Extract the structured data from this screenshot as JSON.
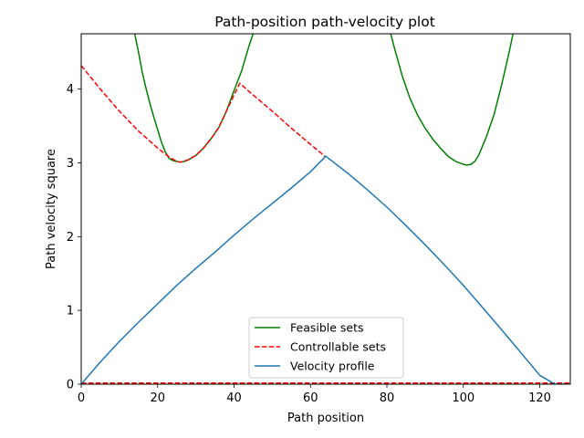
{
  "chart_data": {
    "type": "line",
    "title": "Path-position path-velocity plot",
    "xlabel": "Path position",
    "ylabel": "Path velocity square",
    "xlim": [
      0,
      128
    ],
    "ylim": [
      0,
      4.75
    ],
    "xticks": [
      "0",
      "20",
      "40",
      "60",
      "80",
      "100",
      "120"
    ],
    "yticks": [
      "0",
      "1",
      "2",
      "3",
      "4"
    ],
    "grid": false,
    "legend": "lower-center",
    "series": [
      {
        "name": "Feasible sets",
        "color": "#008000",
        "style": "solid",
        "segments": [
          [
            [
              14,
              4.75
            ],
            [
              15,
              4.5
            ],
            [
              16,
              4.22
            ],
            [
              17,
              4.0
            ],
            [
              18,
              3.8
            ],
            [
              19,
              3.62
            ],
            [
              20,
              3.45
            ],
            [
              21,
              3.28
            ],
            [
              22,
              3.15
            ],
            [
              23,
              3.06
            ],
            [
              24,
              3.03
            ],
            [
              25,
              3.02
            ],
            [
              26,
              3.01
            ],
            [
              27,
              3.02
            ],
            [
              28,
              3.04
            ],
            [
              30,
              3.1
            ],
            [
              32,
              3.2
            ],
            [
              34,
              3.33
            ],
            [
              36,
              3.48
            ],
            [
              38,
              3.7
            ],
            [
              40,
              3.98
            ],
            [
              42,
              4.25
            ],
            [
              43,
              4.43
            ],
            [
              44,
              4.6
            ],
            [
              45,
              4.75
            ]
          ],
          [
            [
              81,
              4.75
            ],
            [
              82,
              4.55
            ],
            [
              84,
              4.18
            ],
            [
              86,
              3.88
            ],
            [
              88,
              3.65
            ],
            [
              90,
              3.47
            ],
            [
              92,
              3.32
            ],
            [
              94,
              3.2
            ],
            [
              96,
              3.09
            ],
            [
              98,
              3.02
            ],
            [
              100,
              2.98
            ],
            [
              101,
              2.97
            ],
            [
              102,
              2.98
            ],
            [
              103,
              3.02
            ],
            [
              104,
              3.1
            ],
            [
              106,
              3.35
            ],
            [
              108,
              3.65
            ],
            [
              110,
              4.05
            ],
            [
              112,
              4.5
            ],
            [
              113,
              4.75
            ]
          ]
        ]
      },
      {
        "name": "Controllable sets",
        "color": "#ff0000",
        "style": "dashed",
        "segments": [
          [
            [
              0,
              4.32
            ],
            [
              5,
              4.0
            ],
            [
              10,
              3.7
            ],
            [
              15,
              3.43
            ],
            [
              20,
              3.2
            ],
            [
              23,
              3.08
            ],
            [
              25,
              3.02
            ],
            [
              26,
              3.01
            ],
            [
              28,
              3.04
            ],
            [
              30,
              3.1
            ],
            [
              32,
              3.2
            ],
            [
              34,
              3.33
            ],
            [
              36,
              3.48
            ],
            [
              38,
              3.7
            ],
            [
              40,
              3.92
            ],
            [
              41.5,
              4.08
            ],
            [
              45,
              3.92
            ],
            [
              50,
              3.7
            ],
            [
              55,
              3.47
            ],
            [
              60,
              3.25
            ],
            [
              64,
              3.08
            ]
          ],
          [
            [
              0,
              0.015
            ],
            [
              128,
              0.015
            ]
          ]
        ]
      },
      {
        "name": "Velocity profile",
        "color": "#1f77b4",
        "style": "solid",
        "segments": [
          [
            [
              0,
              0.0
            ],
            [
              5,
              0.3
            ],
            [
              10,
              0.58
            ],
            [
              15,
              0.84
            ],
            [
              20,
              1.09
            ],
            [
              25,
              1.34
            ],
            [
              30,
              1.57
            ],
            [
              35,
              1.79
            ],
            [
              40,
              2.02
            ],
            [
              45,
              2.24
            ],
            [
              50,
              2.45
            ],
            [
              55,
              2.66
            ],
            [
              60,
              2.88
            ],
            [
              64,
              3.09
            ],
            [
              70,
              2.85
            ],
            [
              75,
              2.63
            ],
            [
              80,
              2.4
            ],
            [
              85,
              2.15
            ],
            [
              90,
              1.89
            ],
            [
              95,
              1.62
            ],
            [
              100,
              1.34
            ],
            [
              105,
              1.04
            ],
            [
              110,
              0.74
            ],
            [
              115,
              0.43
            ],
            [
              120,
              0.12
            ],
            [
              124,
              0.0
            ],
            [
              128,
              0.0
            ]
          ]
        ]
      }
    ]
  }
}
